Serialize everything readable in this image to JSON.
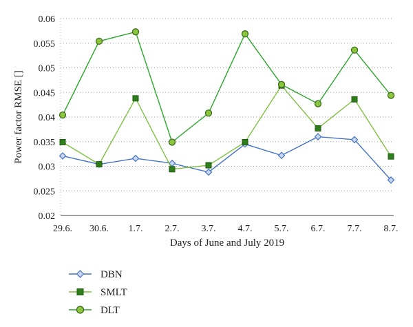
{
  "chart_data": {
    "type": "line",
    "title": "",
    "xlabel": "Days of June and July 2019",
    "ylabel": "Power factor RMSE []",
    "ylim": [
      0.02,
      0.06
    ],
    "yticks": [
      "0.02",
      "0.025",
      "0.03",
      "0.035",
      "0.04",
      "0.045",
      "0.05",
      "0.055",
      "0.06"
    ],
    "categories": [
      "29.6.",
      "30.6.",
      "1.7.",
      "2.7.",
      "3.7.",
      "4.7.",
      "5.7.",
      "6.7.",
      "7.7.",
      "8.7."
    ],
    "grid": "dotted horizontal",
    "legend_position": "bottom-left",
    "series": [
      {
        "name": "DBN",
        "marker": "diamond",
        "line_color": "#4472c4",
        "marker_fill": "#c9d8f0",
        "marker_stroke": "#4472c4",
        "values": [
          0.0321,
          0.0304,
          0.0316,
          0.0306,
          0.0288,
          0.0345,
          0.0322,
          0.036,
          0.0354,
          0.0272
        ]
      },
      {
        "name": "SMLT",
        "marker": "square",
        "line_color": "#7fbf3f",
        "marker_fill": "#2e7d1a",
        "marker_stroke": "#1f5c10",
        "values": [
          0.0349,
          0.0304,
          0.0438,
          0.0294,
          0.0302,
          0.0349,
          0.0464,
          0.0377,
          0.0436,
          0.032
        ]
      },
      {
        "name": "DLT",
        "marker": "circle",
        "line_color": "#2aa52a",
        "marker_fill": "#8cc63f",
        "marker_stroke": "#3a6b1a",
        "values": [
          0.0404,
          0.0554,
          0.0573,
          0.0349,
          0.0408,
          0.0569,
          0.0466,
          0.0427,
          0.0536,
          0.0444
        ]
      }
    ]
  }
}
